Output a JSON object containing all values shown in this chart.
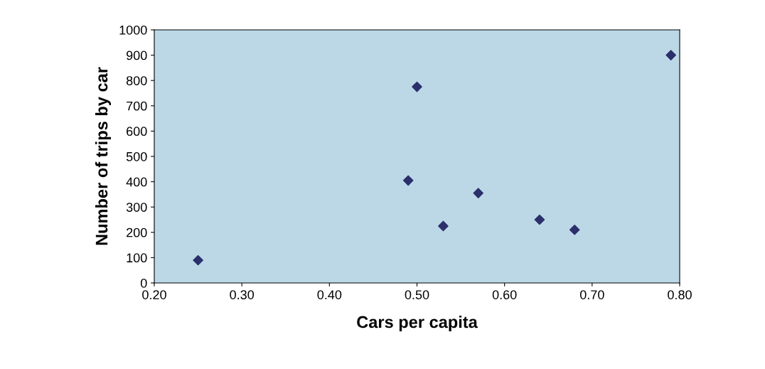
{
  "chart_data": {
    "type": "scatter",
    "xlabel": "Cars per capita",
    "ylabel": "Number of trips by car",
    "x": [
      0.25,
      0.5,
      0.49,
      0.53,
      0.57,
      0.64,
      0.68,
      0.79
    ],
    "series": [
      {
        "color": "#2b2f6b",
        "values": [
          90,
          775,
          405,
          225,
          355,
          250,
          210,
          900
        ]
      }
    ],
    "marker": "diamond",
    "grid": false,
    "legend": false,
    "xlim": [
      0.2,
      0.8
    ],
    "xticks": [
      {
        "value": 0.2,
        "label": "0.20"
      },
      {
        "value": 0.3,
        "label": "0.30"
      },
      {
        "value": 0.4,
        "label": "0.40"
      },
      {
        "value": 0.5,
        "label": "0.50"
      },
      {
        "value": 0.6,
        "label": "0.60"
      },
      {
        "value": 0.7,
        "label": "0.70"
      },
      {
        "value": 0.8,
        "label": "0.80"
      }
    ],
    "ylim": [
      0,
      1000
    ],
    "yticks": [
      0,
      100,
      200,
      300,
      400,
      500,
      600,
      700,
      800,
      900,
      1000
    ]
  }
}
